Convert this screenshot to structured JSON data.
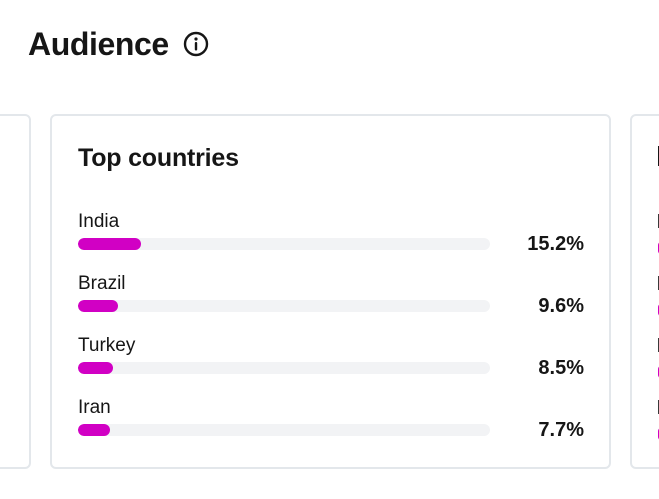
{
  "header": {
    "title": "Audience",
    "info_icon": "info-circle-icon"
  },
  "top_countries": {
    "title": "Top countries",
    "accent_color": "#d100c4",
    "track_color": "#f2f3f5",
    "rows": [
      {
        "country": "India",
        "value_label": "15.2%",
        "fraction": 0.152
      },
      {
        "country": "Brazil",
        "value_label": "9.6%",
        "fraction": 0.096
      },
      {
        "country": "Turkey",
        "value_label": "8.5%",
        "fraction": 0.085
      },
      {
        "country": "Iran",
        "value_label": "7.7%",
        "fraction": 0.077
      }
    ]
  }
}
